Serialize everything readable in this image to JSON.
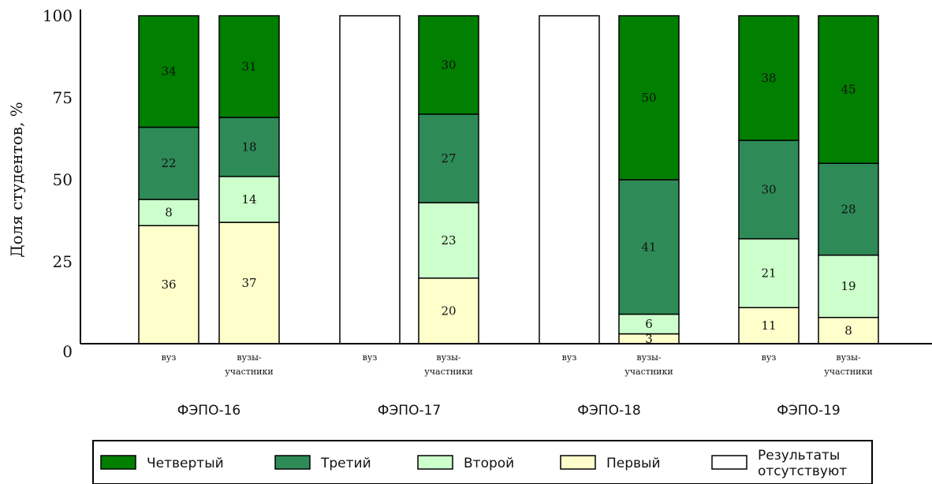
{
  "chart_data": {
    "type": "bar",
    "stacked": true,
    "ylabel": "Доля студентов, %",
    "ylim": [
      0,
      100
    ],
    "yticks": [
      "0",
      "25",
      "50",
      "75",
      "100"
    ],
    "grid": false,
    "legend_position": "bottom",
    "groups": [
      "ФЭПО-16",
      "ФЭПО-17",
      "ФЭПО-18",
      "ФЭПО-19"
    ],
    "categories": [
      {
        "group": "ФЭПО-16",
        "label": [
          "вуз"
        ]
      },
      {
        "group": "ФЭПО-16",
        "label": [
          "вузы-",
          "участники"
        ]
      },
      {
        "group": "ФЭПО-17",
        "label": [
          "вуз"
        ]
      },
      {
        "group": "ФЭПО-17",
        "label": [
          "вузы-",
          "участники"
        ]
      },
      {
        "group": "ФЭПО-18",
        "label": [
          "вуз"
        ]
      },
      {
        "group": "ФЭПО-18",
        "label": [
          "вузы-",
          "участники"
        ]
      },
      {
        "group": "ФЭПО-19",
        "label": [
          "вуз"
        ]
      },
      {
        "group": "ФЭПО-19",
        "label": [
          "вузы-",
          "участники"
        ]
      }
    ],
    "series": [
      {
        "name": "Первый",
        "color": "#ffffcc",
        "values": [
          36,
          37,
          null,
          20,
          null,
          3,
          11,
          8
        ]
      },
      {
        "name": "Второй",
        "color": "#ccffcc",
        "values": [
          8,
          14,
          null,
          23,
          null,
          6,
          21,
          19
        ]
      },
      {
        "name": "Третий",
        "color": "#2e8b57",
        "values": [
          22,
          18,
          null,
          27,
          null,
          41,
          30,
          28
        ]
      },
      {
        "name": "Четвертый",
        "color": "#007f00",
        "values": [
          34,
          31,
          null,
          30,
          null,
          50,
          38,
          45
        ]
      }
    ],
    "no_data_value": 100,
    "no_data_color": "#ffffff",
    "legend": [
      {
        "name": [
          "Четвертый"
        ],
        "color": "#007f00"
      },
      {
        "name": [
          "Третий"
        ],
        "color": "#2e8b57"
      },
      {
        "name": [
          "Второй"
        ],
        "color": "#ccffcc"
      },
      {
        "name": [
          "Первый"
        ],
        "color": "#ffffcc"
      },
      {
        "name": [
          "Результаты",
          "отсутствуют"
        ],
        "color": "#ffffff"
      }
    ]
  }
}
